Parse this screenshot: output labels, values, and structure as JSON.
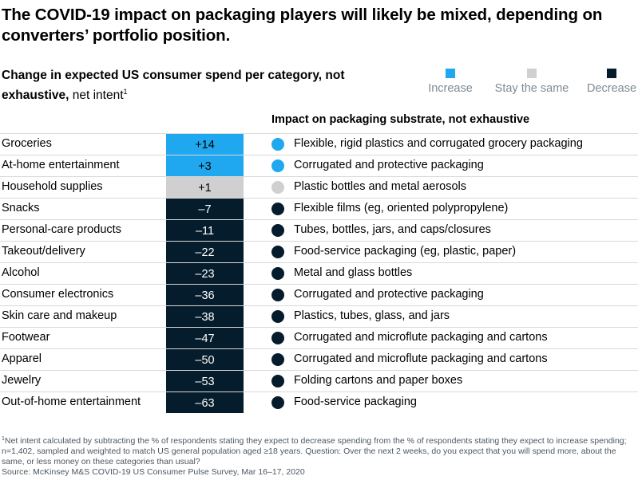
{
  "title": "The COVID-19 impact on packaging players will likely be mixed, depending on converters’ portfolio position.",
  "subtitle": {
    "bold": "Change in expected US consumer spend per category, not exhaustive,",
    "normal": " net intent",
    "sup": "1"
  },
  "colors": {
    "increase": "#1fa8f0",
    "same": "#d0d0d0",
    "decrease": "#051c2c",
    "divider": "#d9d9d9"
  },
  "legend": [
    {
      "label": "Increase",
      "color": "#1fa8f0"
    },
    {
      "label": "Stay the same",
      "color": "#d0d0d0"
    },
    {
      "label": "Decrease",
      "color": "#051c2c"
    }
  ],
  "impact_header": "Impact on packaging substrate, not exhaustive",
  "chart_data": {
    "type": "table",
    "columns": [
      "Category",
      "Net intent",
      "Impact on packaging substrate, not exhaustive"
    ],
    "rows": [
      {
        "category": "Groceries",
        "value": "+14",
        "status": "increase",
        "impact": "Flexible, rigid plastics and corrugated grocery packaging"
      },
      {
        "category": "At-home entertainment",
        "value": "+3",
        "status": "increase",
        "impact": "Corrugated and protective packaging"
      },
      {
        "category": "Household supplies",
        "value": "+1",
        "status": "same",
        "impact": "Plastic bottles and metal aerosols"
      },
      {
        "category": "Snacks",
        "value": "–7",
        "status": "decrease",
        "impact": "Flexible films (eg, oriented polypropylene)"
      },
      {
        "category": "Personal-care products",
        "value": "–11",
        "status": "decrease",
        "impact": "Tubes, bottles, jars, and caps/closures"
      },
      {
        "category": "Takeout/delivery",
        "value": "–22",
        "status": "decrease",
        "impact": "Food-service packaging (eg, plastic, paper)"
      },
      {
        "category": "Alcohol",
        "value": "–23",
        "status": "decrease",
        "impact": "Metal and glass bottles"
      },
      {
        "category": "Consumer electronics",
        "value": "–36",
        "status": "decrease",
        "impact": "Corrugated and protective packaging"
      },
      {
        "category": "Skin care and makeup",
        "value": "–38",
        "status": "decrease",
        "impact": "Plastics, tubes, glass, and jars"
      },
      {
        "category": "Footwear",
        "value": "–47",
        "status": "decrease",
        "impact": "Corrugated and microflute packaging and cartons"
      },
      {
        "category": "Apparel",
        "value": "–50",
        "status": "decrease",
        "impact": "Corrugated and microflute packaging and cartons"
      },
      {
        "category": "Jewelry",
        "value": "–53",
        "status": "decrease",
        "impact": "Folding cartons and paper boxes"
      },
      {
        "category": "Out-of-home entertainment",
        "value": "–63",
        "status": "decrease",
        "impact": "Food-service packaging"
      }
    ]
  },
  "footnote": {
    "sup": "1",
    "text": "Net intent calculated by subtracting the % of respondents stating they expect to decrease spending from the % of respondents stating they expect to increase spending; n=1,402, sampled and weighted to match US general population aged ≥18 years. Question: Over the next 2 weeks, do you expect that you will spend more, about the same, or less money on these categories than usual?",
    "source": "Source: McKinsey M&S COVID-19 US Consumer Pulse Survey, Mar 16–17, 2020"
  }
}
